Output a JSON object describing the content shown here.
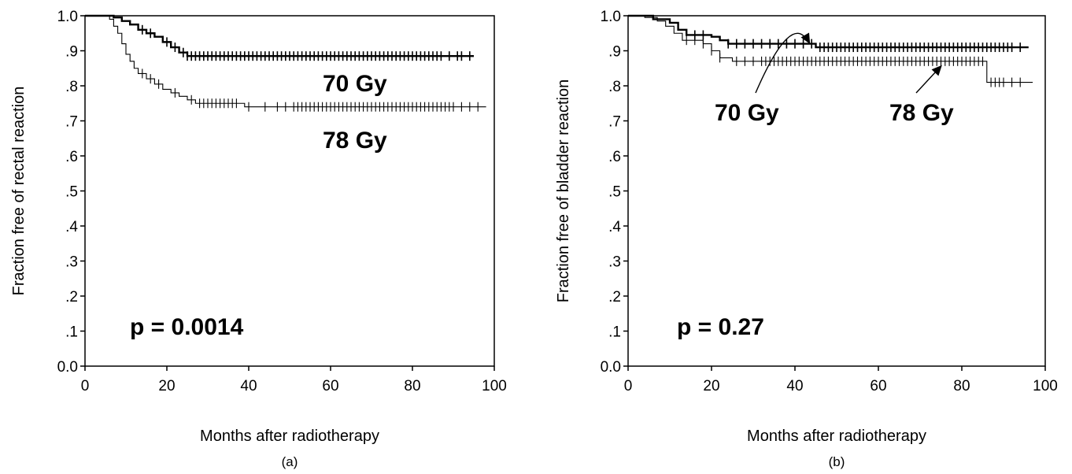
{
  "chart_data": [
    {
      "type": "line",
      "panel_label": "(a)",
      "xlabel": "Months after radiotherapy",
      "ylabel": "Fraction free of rectal reaction",
      "xlim": [
        0,
        100
      ],
      "ylim": [
        0,
        1.0
      ],
      "x_ticks": [
        0,
        20,
        40,
        60,
        80,
        100
      ],
      "y_ticks": [
        {
          "v": 1.0,
          "label": "1.0"
        },
        {
          "v": 0.9,
          "label": ".9"
        },
        {
          "v": 0.8,
          "label": ".8"
        },
        {
          "v": 0.7,
          "label": ".7"
        },
        {
          "v": 0.6,
          "label": ".6"
        },
        {
          "v": 0.5,
          "label": ".5"
        },
        {
          "v": 0.4,
          "label": ".4"
        },
        {
          "v": 0.3,
          "label": ".3"
        },
        {
          "v": 0.2,
          "label": ".2"
        },
        {
          "v": 0.1,
          "label": ".1"
        },
        {
          "v": 0.0,
          "label": "0.0"
        }
      ],
      "grid": false,
      "annotation": "p = 0.0014",
      "series": [
        {
          "name": "70 Gy",
          "weight": "thick",
          "steps": [
            [
              0,
              1.0
            ],
            [
              6,
              1.0
            ],
            [
              7,
              0.995
            ],
            [
              9,
              0.985
            ],
            [
              11,
              0.975
            ],
            [
              13,
              0.96
            ],
            [
              15,
              0.95
            ],
            [
              17,
              0.94
            ],
            [
              19,
              0.925
            ],
            [
              21,
              0.91
            ],
            [
              23,
              0.895
            ],
            [
              25,
              0.885
            ],
            [
              95,
              0.885
            ]
          ],
          "censored": [
            14,
            16,
            20,
            22,
            24,
            25,
            26,
            27,
            28,
            29,
            30,
            31,
            32,
            33,
            34,
            35,
            36,
            37,
            38,
            39,
            40,
            41,
            42,
            43,
            44,
            45,
            46,
            47,
            48,
            49,
            50,
            51,
            52,
            53,
            54,
            55,
            56,
            57,
            58,
            59,
            60,
            61,
            62,
            63,
            64,
            65,
            66,
            67,
            68,
            69,
            70,
            71,
            72,
            73,
            74,
            75,
            76,
            77,
            78,
            79,
            80,
            81,
            82,
            83,
            84,
            85,
            86,
            87,
            89,
            91,
            92,
            94
          ]
        },
        {
          "name": "78 Gy",
          "weight": "thin",
          "steps": [
            [
              0,
              1.0
            ],
            [
              4,
              1.0
            ],
            [
              6,
              0.99
            ],
            [
              7,
              0.97
            ],
            [
              8,
              0.95
            ],
            [
              9,
              0.92
            ],
            [
              10,
              0.89
            ],
            [
              11,
              0.87
            ],
            [
              12,
              0.85
            ],
            [
              13,
              0.835
            ],
            [
              15,
              0.82
            ],
            [
              17,
              0.805
            ],
            [
              19,
              0.79
            ],
            [
              21,
              0.78
            ],
            [
              23,
              0.77
            ],
            [
              25,
              0.76
            ],
            [
              27,
              0.75
            ],
            [
              38,
              0.75
            ],
            [
              39,
              0.74
            ],
            [
              98,
              0.74
            ]
          ],
          "censored": [
            14,
            16,
            18,
            22,
            26,
            28,
            29,
            30,
            31,
            32,
            33,
            34,
            35,
            36,
            37,
            40,
            44,
            47,
            49,
            51,
            52,
            53,
            54,
            55,
            56,
            57,
            58,
            59,
            60,
            61,
            62,
            63,
            64,
            65,
            66,
            67,
            68,
            69,
            70,
            71,
            72,
            73,
            74,
            75,
            76,
            77,
            78,
            79,
            80,
            81,
            82,
            83,
            84,
            85,
            86,
            87,
            88,
            89,
            90,
            92,
            94,
            96
          ]
        }
      ]
    },
    {
      "type": "line",
      "panel_label": "(b)",
      "xlabel": "Months after radiotherapy",
      "ylabel": "Fraction free of bladder reaction",
      "xlim": [
        0,
        100
      ],
      "ylim": [
        0,
        1.0
      ],
      "x_ticks": [
        0,
        20,
        40,
        60,
        80,
        100
      ],
      "y_ticks": [
        {
          "v": 1.0,
          "label": "1.0"
        },
        {
          "v": 0.9,
          "label": ".9"
        },
        {
          "v": 0.8,
          "label": ".8"
        },
        {
          "v": 0.7,
          "label": ".7"
        },
        {
          "v": 0.6,
          "label": ".6"
        },
        {
          "v": 0.5,
          "label": ".5"
        },
        {
          "v": 0.4,
          "label": ".4"
        },
        {
          "v": 0.3,
          "label": ".3"
        },
        {
          "v": 0.2,
          "label": ".2"
        },
        {
          "v": 0.1,
          "label": ".1"
        },
        {
          "v": 0.0,
          "label": "0.0"
        }
      ],
      "grid": false,
      "annotation": "p = 0.27",
      "series": [
        {
          "name": "70 Gy",
          "weight": "thick",
          "label_arrow_to": [
            44,
            0.915
          ],
          "steps": [
            [
              0,
              1.0
            ],
            [
              4,
              1.0
            ],
            [
              6,
              0.99
            ],
            [
              10,
              0.98
            ],
            [
              12,
              0.96
            ],
            [
              14,
              0.945
            ],
            [
              20,
              0.94
            ],
            [
              22,
              0.93
            ],
            [
              24,
              0.92
            ],
            [
              44,
              0.92
            ],
            [
              45,
              0.91
            ],
            [
              96,
              0.91
            ]
          ],
          "censored": [
            16,
            18,
            24,
            26,
            28,
            30,
            32,
            34,
            36,
            38,
            40,
            42,
            44,
            46,
            47,
            48,
            49,
            50,
            51,
            52,
            53,
            54,
            55,
            56,
            57,
            58,
            59,
            60,
            61,
            62,
            63,
            64,
            65,
            66,
            67,
            68,
            69,
            70,
            71,
            72,
            73,
            74,
            75,
            76,
            77,
            78,
            79,
            80,
            81,
            82,
            83,
            84,
            85,
            86,
            87,
            88,
            89,
            90,
            91,
            92,
            94
          ]
        },
        {
          "name": "78 Gy",
          "weight": "thin",
          "label_arrow_to": [
            76,
            0.868
          ],
          "steps": [
            [
              0,
              1.0
            ],
            [
              3,
              1.0
            ],
            [
              4,
              0.995
            ],
            [
              7,
              0.985
            ],
            [
              9,
              0.97
            ],
            [
              11,
              0.95
            ],
            [
              13,
              0.93
            ],
            [
              18,
              0.92
            ],
            [
              20,
              0.9
            ],
            [
              22,
              0.88
            ],
            [
              25,
              0.87
            ],
            [
              85,
              0.87
            ],
            [
              86,
              0.81
            ],
            [
              97,
              0.81
            ]
          ],
          "censored": [
            14,
            16,
            18,
            20,
            22,
            26,
            28,
            30,
            32,
            33,
            34,
            35,
            36,
            37,
            38,
            39,
            40,
            41,
            42,
            43,
            44,
            45,
            46,
            47,
            48,
            49,
            50,
            51,
            52,
            53,
            54,
            55,
            56,
            57,
            58,
            59,
            60,
            61,
            62,
            63,
            64,
            65,
            66,
            67,
            68,
            69,
            70,
            71,
            72,
            73,
            74,
            75,
            76,
            77,
            78,
            79,
            80,
            81,
            82,
            83,
            84,
            85,
            87,
            88,
            89,
            90,
            92,
            94
          ]
        }
      ]
    }
  ]
}
